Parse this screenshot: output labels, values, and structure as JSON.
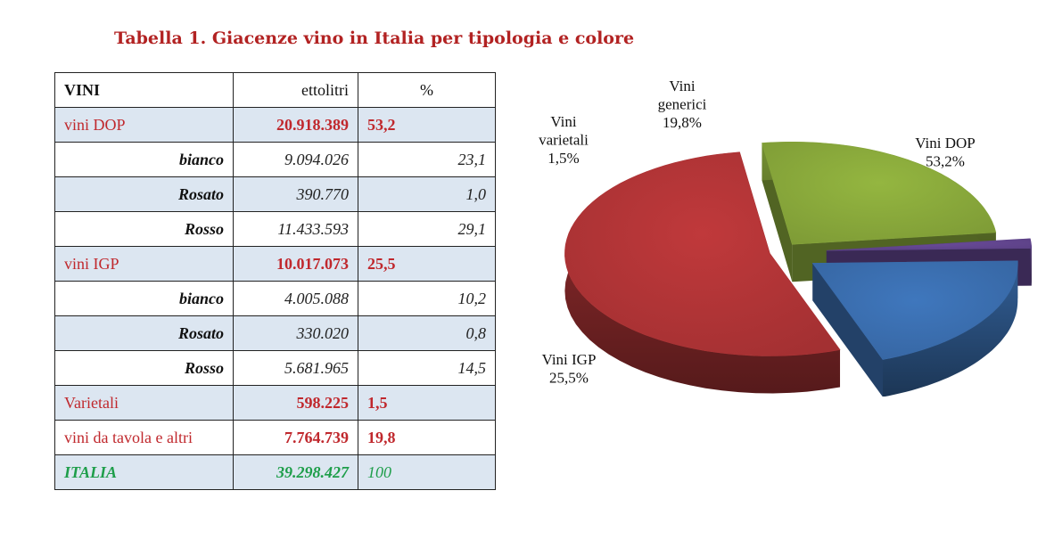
{
  "title": "Tabella 1. Giacenze vino in Italia per tipologia e colore",
  "table": {
    "headers": [
      "VINI",
      "ettolitri",
      "%"
    ],
    "rows": [
      {
        "kind": "main",
        "name": "vini DOP",
        "value": "20.918.389",
        "pct": "53,2"
      },
      {
        "kind": "sub",
        "name": "bianco",
        "value": "9.094.026",
        "pct": "23,1"
      },
      {
        "kind": "sub",
        "name": "Rosato",
        "value": "390.770",
        "pct": "1,0"
      },
      {
        "kind": "sub",
        "name": "Rosso",
        "value": "11.433.593",
        "pct": "29,1"
      },
      {
        "kind": "main",
        "name": "vini IGP",
        "value": "10.017.073",
        "pct": "25,5"
      },
      {
        "kind": "sub",
        "name": "bianco",
        "value": "4.005.088",
        "pct": "10,2"
      },
      {
        "kind": "sub",
        "name": "Rosato",
        "value": "330.020",
        "pct": "0,8"
      },
      {
        "kind": "sub",
        "name": "Rosso",
        "value": "5.681.965",
        "pct": "14,5"
      },
      {
        "kind": "main",
        "name": "Varietali",
        "value": "598.225",
        "pct": "1,5"
      },
      {
        "kind": "main",
        "name": "vini da tavola e altri",
        "value": "7.764.739",
        "pct": "19,8"
      },
      {
        "kind": "total",
        "name": "ITALIA",
        "value": "39.298.427",
        "pct": "100"
      }
    ]
  },
  "chart_data": {
    "type": "pie",
    "title": "",
    "slices": [
      {
        "label": "Vini DOP",
        "label_lines": [
          "Vini DOP"
        ],
        "pct_label": "53,2%",
        "value": 53.2,
        "color": "#c0393b"
      },
      {
        "label": "Vini IGP",
        "label_lines": [
          "Vini IGP"
        ],
        "pct_label": "25,5%",
        "value": 25.5,
        "color": "#94b640"
      },
      {
        "label": "Vini varietali",
        "label_lines": [
          "Vini",
          "varietali"
        ],
        "pct_label": "1,5%",
        "value": 1.5,
        "color": "#6a4b9a"
      },
      {
        "label": "Vini generici",
        "label_lines": [
          "Vini",
          "generici"
        ],
        "pct_label": "19,8%",
        "value": 19.8,
        "color": "#3f77bd"
      }
    ]
  }
}
